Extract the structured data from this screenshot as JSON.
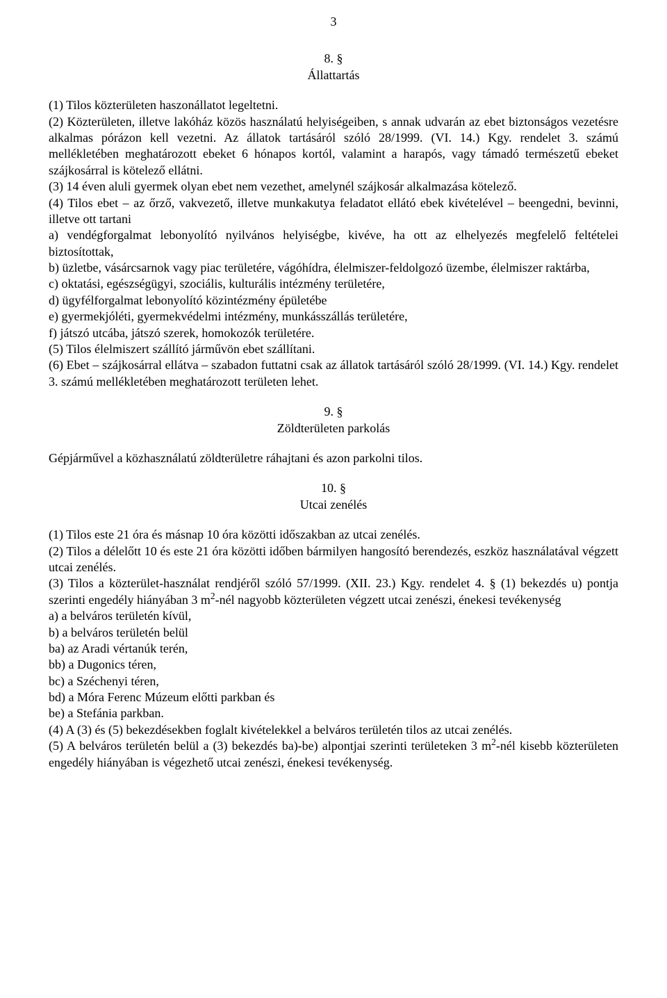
{
  "page_number": "3",
  "section8": {
    "number": "8. §",
    "title": "Állattartás",
    "p1": "(1) Tilos közterületen haszonállatot legeltetni.",
    "p2": "(2) Közterületen, illetve lakóház közös használatú helyiségeiben, s annak udvarán az ebet biztonságos vezetésre alkalmas pórázon kell vezetni. Az állatok tartásáról szóló 28/1999. (VI. 14.) Kgy. rendelet 3. számú mellékletében meghatározott ebeket 6 hónapos kortól, valamint a harapós, vagy támadó természetű ebeket szájkosárral is kötelező ellátni.",
    "p3": "(3) 14 éven aluli gyermek olyan ebet nem vezethet, amelynél szájkosár alkalmazása kötelező.",
    "p4": "(4) Tilos ebet – az őrző, vakvezető, illetve munkakutya feladatot ellátó ebek kivételével – beengedni, bevinni, illetve ott tartani",
    "p4a": "a) vendégforgalmat lebonyolító nyilvános helyiségbe, kivéve, ha ott az elhelyezés megfelelő feltételei biztosítottak,",
    "p4b": "b) üzletbe, vásárcsarnok vagy piac területére, vágóhídra, élelmiszer-feldolgozó üzembe, élelmiszer raktárba,",
    "p4c": "c) oktatási, egészségügyi, szociális, kulturális intézmény területére,",
    "p4d": "d) ügyfélforgalmat lebonyolító közintézmény épületébe",
    "p4e": "e) gyermekjóléti, gyermekvédelmi intézmény, munkásszállás területére,",
    "p4f": "f) játszó utcába, játszó szerek, homokozók területére.",
    "p5": "(5) Tilos élelmiszert szállító járművön ebet szállítani.",
    "p6": "(6) Ebet – szájkosárral ellátva – szabadon futtatni csak az állatok tartásáról szóló 28/1999. (VI. 14.) Kgy. rendelet 3. számú mellékletében meghatározott területen lehet."
  },
  "section9": {
    "number": "9. §",
    "title": "Zöldterületen parkolás",
    "p1": "Gépjárművel a közhasználatú zöldterületre ráhajtani és azon parkolni tilos."
  },
  "section10": {
    "number": "10. §",
    "title": "Utcai zenélés",
    "p1": "(1) Tilos este 21 óra és másnap 10 óra közötti időszakban az utcai zenélés.",
    "p2": "(2) Tilos a délelőtt 10 és este 21 óra közötti időben bármilyen hangosító berendezés, eszköz használatával végzett utcai zenélés.",
    "p3_pre": "(3) Tilos a közterület-használat rendjéről szóló 57/1999. (XII. 23.) Kgy. rendelet 4. § (1) bekezdés u) pontja szerinti engedély hiányában 3 m",
    "p3_sup": "2",
    "p3_post": "-nél nagyobb közterületen végzett utcai zenészi, énekesi tevékenység",
    "p3a": "a) a belváros területén kívül,",
    "p3b": "b) a belváros területén belül",
    "p3ba": "ba) az Aradi vértanúk terén,",
    "p3bb": "bb) a Dugonics téren,",
    "p3bc": "bc) a Széchenyi téren,",
    "p3bd": "bd) a Móra Ferenc Múzeum előtti parkban és",
    "p3be": "be) a Stefánia parkban.",
    "p4": "(4) A (3) és (5) bekezdésekben foglalt kivételekkel a belváros területén tilos az utcai zenélés.",
    "p5_pre": "(5) A belváros területén belül a (3) bekezdés ba)-be) alpontjai szerinti területeken 3 m",
    "p5_sup": "2",
    "p5_post": "-nél kisebb közterületen engedély hiányában is végezhető utcai zenészi, énekesi tevékenység."
  }
}
